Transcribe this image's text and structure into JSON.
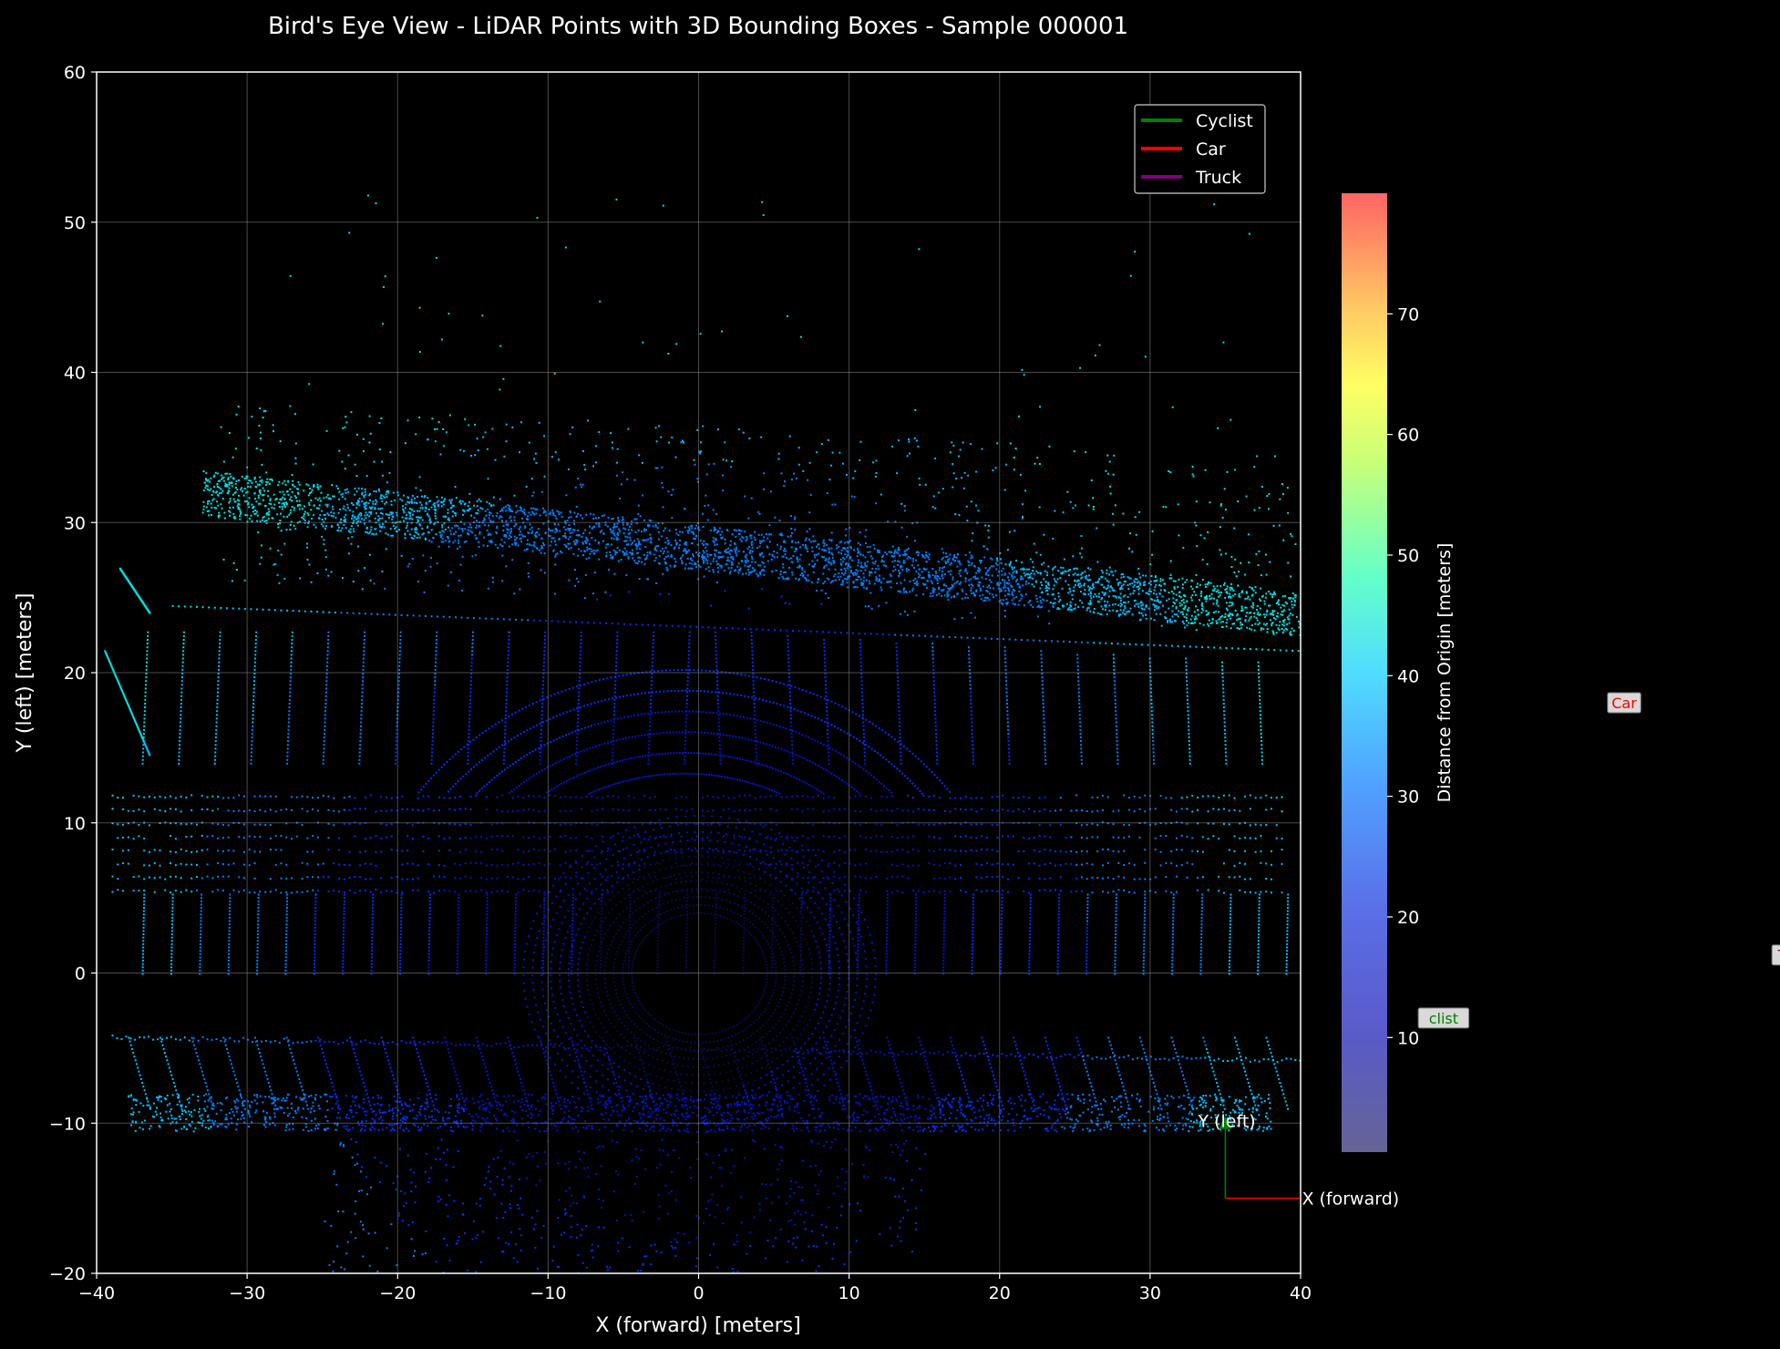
{
  "chart_data": {
    "type": "scatter",
    "title": "Bird's Eye View - LiDAR Points with 3D Bounding Boxes - Sample 000001",
    "xlabel": "X (forward) [meters]",
    "ylabel": "Y (left) [meters]",
    "xlim": [
      -40,
      40
    ],
    "ylim": [
      -20,
      60
    ],
    "xticks": [
      -40,
      -30,
      -20,
      -10,
      0,
      10,
      20,
      30,
      40
    ],
    "yticks": [
      -20,
      -10,
      0,
      10,
      20,
      30,
      40,
      50,
      60
    ],
    "grid": true,
    "legend": {
      "placement": "top-right",
      "entries": [
        {
          "name": "Cyclist",
          "color": "#008000"
        },
        {
          "name": "Car",
          "color": "#ff0000"
        },
        {
          "name": "Truck",
          "color": "#800080"
        }
      ]
    },
    "colorbar": {
      "label": "Distance from Origin [meters]",
      "range": [
        0.5,
        80
      ],
      "ticks": [
        10,
        20,
        30,
        40,
        50,
        60,
        70
      ],
      "colormap": "jet"
    },
    "object_labels": [
      {
        "text": "Car",
        "x": 61.5,
        "y": 18,
        "color": "#ff0000"
      },
      {
        "text": "Truck",
        "x": 73,
        "y": 1.2,
        "color": "#800080"
      },
      {
        "text": "clist",
        "x": 49.5,
        "y": -3,
        "color": "#008000"
      }
    ],
    "axes_arrows": {
      "origin": [
        35,
        -15
      ],
      "x_label": "X (forward)",
      "x_color": "#ff0000",
      "y_label": "Y (left)",
      "y_color": "#008000"
    }
  }
}
